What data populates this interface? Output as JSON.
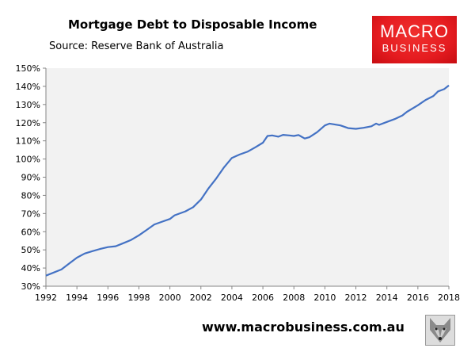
{
  "header": {
    "brand_line1": "MACRO",
    "brand_line2": "BUSINESS",
    "brand_color": "#e51c20"
  },
  "footer": {
    "url": "www.macrobusiness.com.au"
  },
  "chart_data": {
    "type": "line",
    "title": "Mortgage Debt to Disposable Income",
    "subtitle": "Source: Reserve Bank of Australia",
    "xlabel": "",
    "ylabel": "",
    "xlim": [
      1992,
      2018
    ],
    "ylim": [
      30,
      150
    ],
    "x_ticks": [
      "1992",
      "1994",
      "1996",
      "1998",
      "2000",
      "2002",
      "2004",
      "2006",
      "2008",
      "2010",
      "2012",
      "2014",
      "2016",
      "2018"
    ],
    "y_ticks": [
      "30%",
      "40%",
      "50%",
      "60%",
      "70%",
      "80%",
      "90%",
      "100%",
      "110%",
      "120%",
      "130%",
      "140%",
      "150%"
    ],
    "grid": false,
    "plot_background": "#f2f2f2",
    "line_color": "#4472c4",
    "series": [
      {
        "x": [
          1992,
          1993,
          1993.5,
          1994,
          1994.5,
          1995,
          1995.5,
          1996,
          1996.5,
          1997,
          1997.5,
          1998,
          1998.5,
          1999,
          1999.5,
          2000,
          2000.3,
          2001,
          2001.5,
          2002,
          2002.5,
          2003,
          2003.5,
          2004,
          2004.5,
          2005,
          2005.5,
          2006,
          2006.3,
          2006.6,
          2007,
          2007.3,
          2007.7,
          2008,
          2008.3,
          2008.7,
          2009,
          2009.5,
          2010,
          2010.3,
          2011,
          2011.5,
          2012,
          2012.5,
          2013,
          2013.3,
          2013.5,
          2014,
          2014.5,
          2015,
          2015.3,
          2016,
          2016.5,
          2017,
          2017.3,
          2017.7,
          2018
        ],
        "y": [
          35.8,
          39.2,
          42.5,
          45.7,
          48,
          49.3,
          50.5,
          51.5,
          52,
          53.7,
          55.5,
          58,
          61,
          64,
          65.5,
          67,
          69,
          71.2,
          73.5,
          77.7,
          84,
          89.4,
          95.5,
          100.6,
          102.5,
          104,
          106.4,
          109,
          112.7,
          113,
          112.3,
          113.3,
          113,
          112.7,
          113.2,
          111.3,
          112,
          114.8,
          118.5,
          119.5,
          118.5,
          117,
          116.6,
          117.2,
          118,
          119.5,
          118.8,
          120.4,
          122,
          124,
          126,
          129.6,
          132.5,
          134.7,
          137.2,
          138.5,
          140.5
        ]
      }
    ]
  }
}
